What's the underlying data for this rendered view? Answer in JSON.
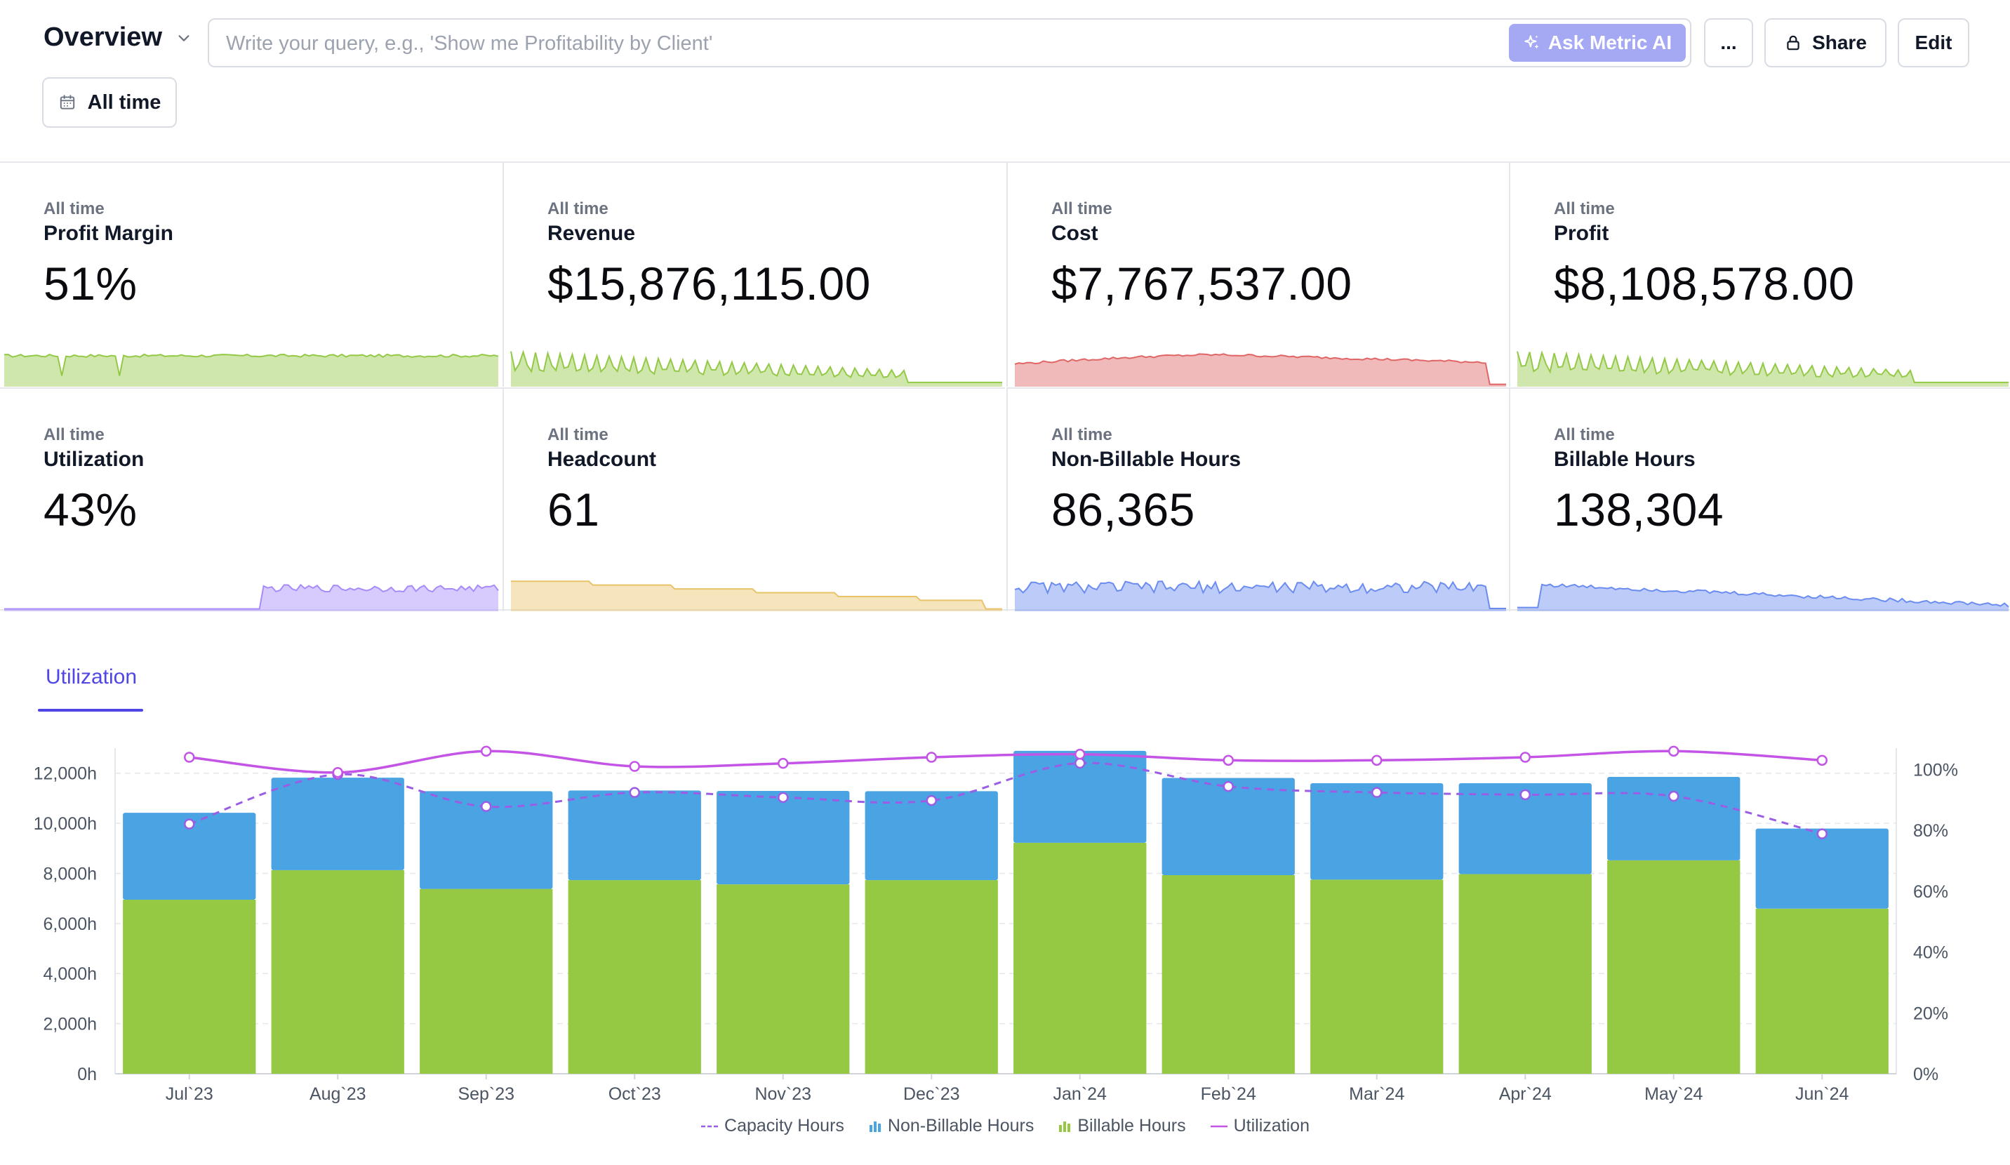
{
  "header": {
    "title": "Overview",
    "query_placeholder": "Write your query, e.g., 'Show me Profitability by Client'",
    "ask_label": "Ask Metric AI",
    "more_label": "...",
    "share_label": "Share",
    "edit_label": "Edit",
    "date_filter": "All time"
  },
  "kpis": [
    {
      "period": "All time",
      "name": "Profit Margin",
      "value": "51%",
      "color": "#94c947"
    },
    {
      "period": "All time",
      "name": "Revenue",
      "value": "$15,876,115.00",
      "color": "#94c947"
    },
    {
      "period": "All time",
      "name": "Cost",
      "value": "$7,767,537.00",
      "color": "#e06666"
    },
    {
      "period": "All time",
      "name": "Profit",
      "value": "$8,108,578.00",
      "color": "#94c947"
    },
    {
      "period": "All time",
      "name": "Utilization",
      "value": "43%",
      "color": "#a78bfa"
    },
    {
      "period": "All time",
      "name": "Headcount",
      "value": "61",
      "color": "#e8c36a"
    },
    {
      "period": "All time",
      "name": "Non-Billable Hours",
      "value": "86,365",
      "color": "#6b8cf0"
    },
    {
      "period": "All time",
      "name": "Billable Hours",
      "value": "138,304",
      "color": "#6b8cf0"
    }
  ],
  "tabs": [
    {
      "label": "Utilization",
      "active": true
    }
  ],
  "chart_data": {
    "type": "bar",
    "stacked": true,
    "categories": [
      "Jul`23",
      "Aug`23",
      "Sep`23",
      "Oct`23",
      "Nov`23",
      "Dec`23",
      "Jan`24",
      "Feb`24",
      "Mar`24",
      "Apr`24",
      "May`24",
      "Jun`24"
    ],
    "series": [
      {
        "name": "Billable Hours",
        "type": "bar",
        "color": "#95c943",
        "axis": "left",
        "values": [
          6950,
          8130,
          7380,
          7730,
          7560,
          7730,
          9220,
          7930,
          7750,
          7970,
          8520,
          6590
        ]
      },
      {
        "name": "Non-Billable Hours",
        "type": "bar",
        "color": "#4aa3e3",
        "axis": "left",
        "values": [
          3470,
          3690,
          3900,
          3580,
          3730,
          3550,
          3670,
          3880,
          3850,
          3630,
          3330,
          3200
        ]
      },
      {
        "name": "Capacity Hours",
        "type": "line",
        "dashed": true,
        "color": "#9b5de5",
        "axis": "left",
        "values": [
          9970,
          11950,
          10670,
          11230,
          11030,
          10910,
          12400,
          11470,
          11230,
          11140,
          11080,
          9580
        ]
      },
      {
        "name": "Utilization",
        "type": "line",
        "color": "#c454e6",
        "axis": "right",
        "values": [
          104,
          99,
          106,
          101,
          102,
          104,
          105,
          103,
          103,
          104,
          106,
          103
        ]
      }
    ],
    "y_left": {
      "ticks": [
        "0h",
        "2,000h",
        "4,000h",
        "6,000h",
        "8,000h",
        "10,000h",
        "12,000h"
      ],
      "min": 0,
      "max": 13000
    },
    "y_right": {
      "ticks": [
        "0%",
        "20%",
        "40%",
        "60%",
        "80%",
        "100%"
      ],
      "min": 0,
      "max": 107
    },
    "grid": true,
    "legend": "bottom"
  }
}
